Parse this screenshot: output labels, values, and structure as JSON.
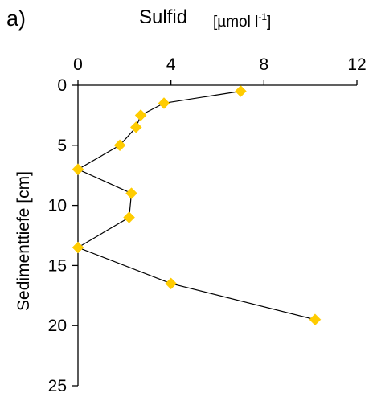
{
  "panel_label": "a)",
  "chart_data": {
    "type": "line",
    "title": "Sulfid",
    "xlabel": "[µmol l-1]",
    "xlabel_text": "[µmol l",
    "xlabel_sup": "-1",
    "xlabel_close": "]",
    "ylabel": "Sedimenttiefe [cm]",
    "x_ticks": [
      0,
      4,
      8,
      12
    ],
    "y_ticks": [
      0,
      5,
      10,
      15,
      20,
      25
    ],
    "xlim": [
      0,
      12
    ],
    "ylim": [
      0,
      25
    ],
    "y_inverted": true,
    "x_axis_position": "top",
    "grid": false,
    "marker": "diamond",
    "marker_color": "#FFCC00",
    "line_color": "#000000",
    "series": [
      {
        "x": [
          7.0,
          3.7,
          2.7,
          2.5,
          1.8,
          0.0,
          2.3,
          2.2,
          0.0,
          4.0,
          10.2
        ],
        "y": [
          0.5,
          1.5,
          2.5,
          3.5,
          5.0,
          7.0,
          9.0,
          11.0,
          13.5,
          16.5,
          19.5
        ]
      }
    ]
  }
}
